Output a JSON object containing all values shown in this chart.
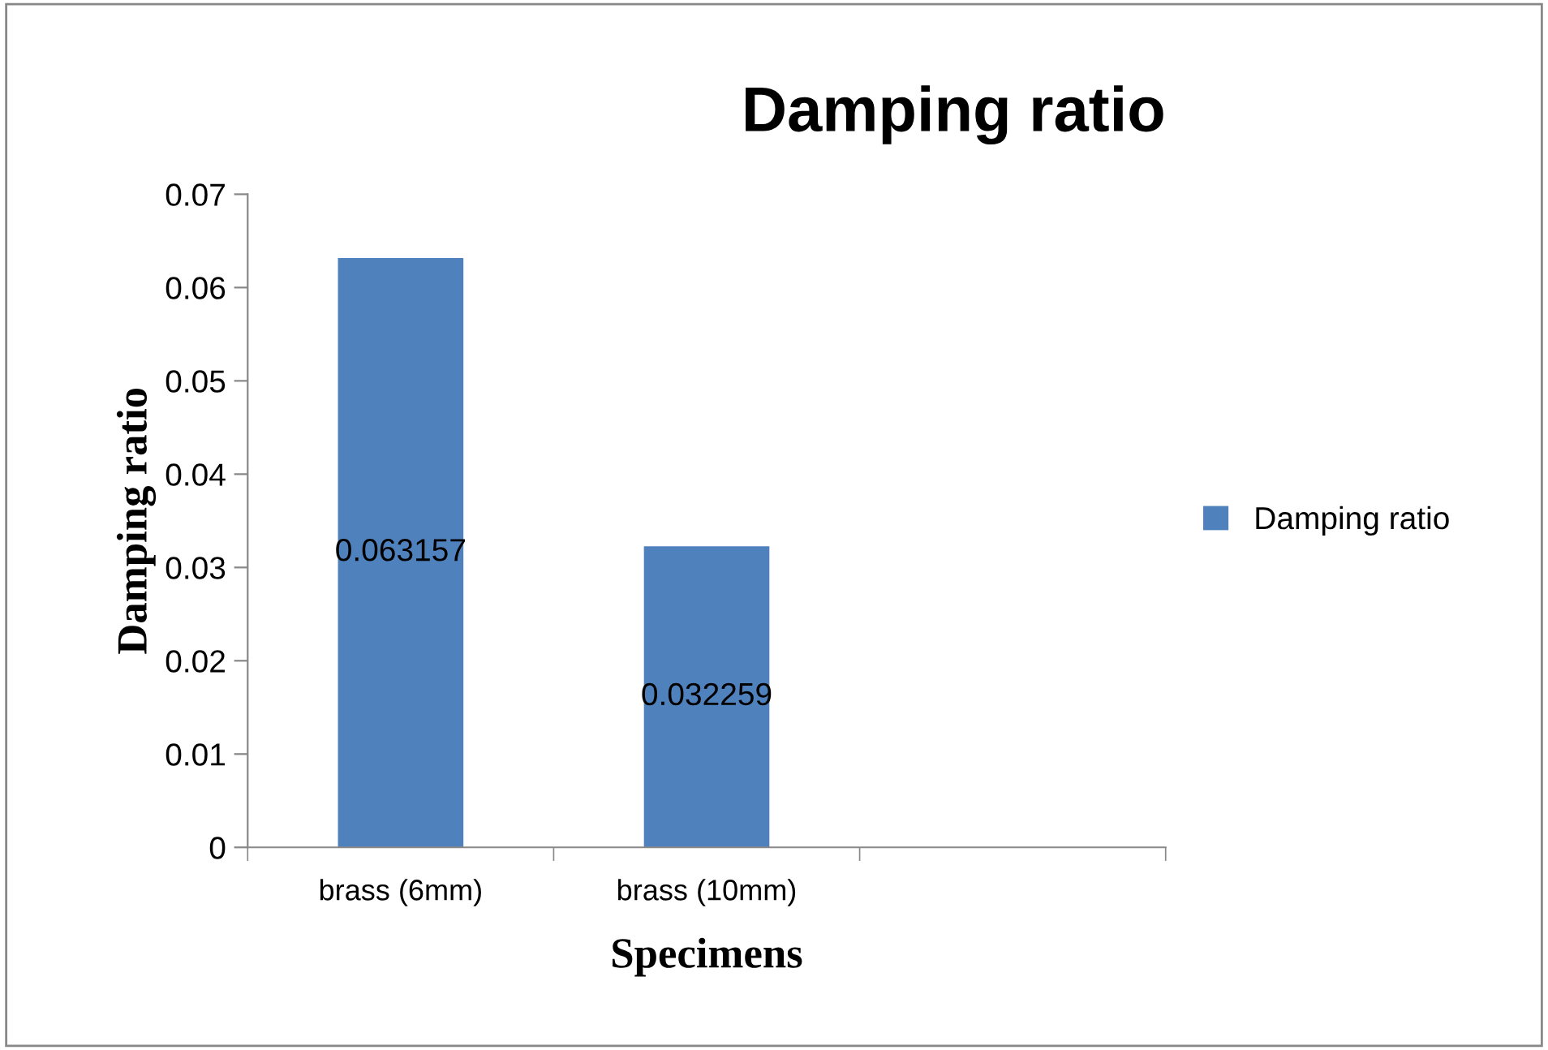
{
  "chart_data": {
    "type": "bar",
    "title": "Damping ratio",
    "xlabel": "Specimens",
    "ylabel": "Damping ratio",
    "categories": [
      "brass (6mm)",
      "brass (10mm)",
      null
    ],
    "series": [
      {
        "name": "Damping ratio",
        "color": "#4f81bd",
        "values": [
          0.063157,
          0.032259,
          null
        ]
      }
    ],
    "ylim": [
      0,
      0.07
    ],
    "yticks": [
      0,
      0.01,
      0.02,
      0.03,
      0.04,
      0.05,
      0.06,
      0.07
    ],
    "data_labels": true,
    "legend": "right",
    "grid": false
  }
}
